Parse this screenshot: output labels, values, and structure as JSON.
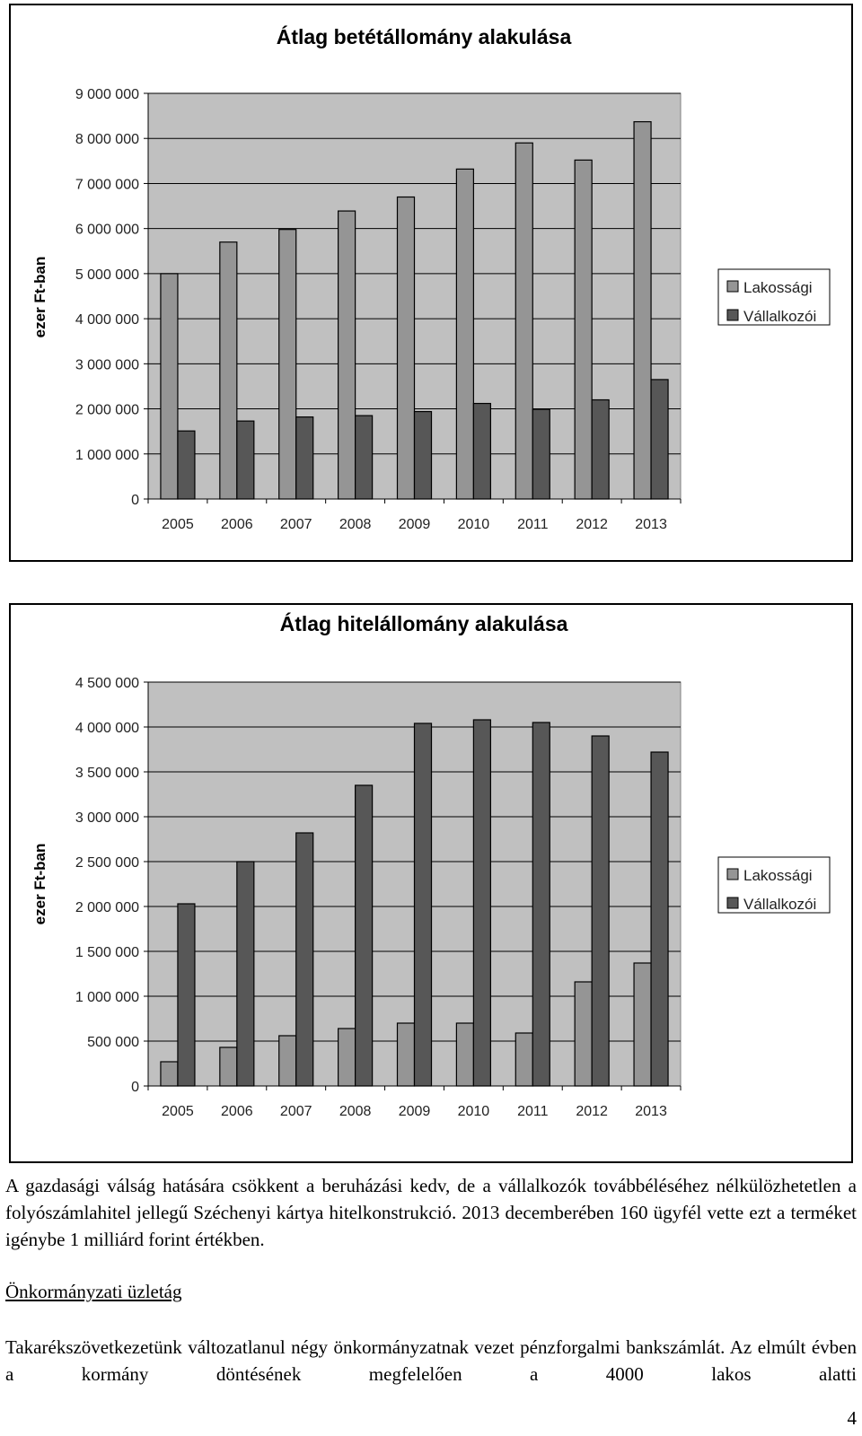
{
  "chart_data": [
    {
      "type": "bar",
      "title": "Átlag betétállomány alakulása",
      "ylabel": "ezer Ft-ban",
      "xlabel": "",
      "categories": [
        "2005",
        "2006",
        "2007",
        "2008",
        "2009",
        "2010",
        "2011",
        "2012",
        "2013"
      ],
      "series": [
        {
          "name": "Lakossági",
          "color": "#959595",
          "values": [
            5000000,
            5700000,
            5980000,
            6390000,
            6700000,
            7320000,
            7900000,
            7520000,
            8370000
          ]
        },
        {
          "name": "Vállalkozói",
          "color": "#575757",
          "values": [
            1510000,
            1730000,
            1820000,
            1850000,
            1940000,
            2120000,
            1990000,
            2200000,
            2650000
          ]
        }
      ],
      "ylim": [
        0,
        9000000
      ],
      "yticks": [
        0,
        1000000,
        2000000,
        3000000,
        4000000,
        5000000,
        6000000,
        7000000,
        8000000,
        9000000
      ],
      "ytick_labels": [
        "0",
        "1 000 000",
        "2 000 000",
        "3 000 000",
        "4 000 000",
        "5 000 000",
        "6 000 000",
        "7 000 000",
        "8 000 000",
        "9 000 000"
      ],
      "grid": true,
      "legend": "right"
    },
    {
      "type": "bar",
      "title": "Átlag hitelállomány alakulása",
      "ylabel": "ezer Ft-ban",
      "xlabel": "",
      "categories": [
        "2005",
        "2006",
        "2007",
        "2008",
        "2009",
        "2010",
        "2011",
        "2012",
        "2013"
      ],
      "series": [
        {
          "name": "Lakossági",
          "color": "#959595",
          "values": [
            270000,
            430000,
            560000,
            640000,
            700000,
            700000,
            590000,
            1160000,
            1370000
          ]
        },
        {
          "name": "Vállalkozói",
          "color": "#575757",
          "values": [
            2030000,
            2500000,
            2820000,
            3350000,
            4040000,
            4080000,
            4050000,
            3900000,
            3720000
          ]
        }
      ],
      "ylim": [
        0,
        4500000
      ],
      "yticks": [
        0,
        500000,
        1000000,
        1500000,
        2000000,
        2500000,
        3000000,
        3500000,
        4000000,
        4500000
      ],
      "ytick_labels": [
        "0",
        "500 000",
        "1 000 000",
        "1 500 000",
        "2 000 000",
        "2 500 000",
        "3 000 000",
        "3 500 000",
        "4 000 000",
        "4 500 000"
      ],
      "grid": true,
      "legend": "right"
    }
  ],
  "text": {
    "para1": "A gazdasági válság hatására csökkent a beruházási kedv, de a vállalkozók továbbéléséhez nélkülözhetetlen a folyószámlahitel jellegű Széchenyi kártya hitelkonstrukció. 2013 decemberében 160 ügyfél vette ezt a terméket igénybe 1 milliárd forint értékben.",
    "section_heading": "Önkormányzati üzletág",
    "para2": "Takarékszövetkezetünk változatlanul négy önkormányzatnak vezet pénzforgalmi bankszámlát. Az elmúlt évben a kormány döntésének megfelelően a 4000 lakos alatti",
    "page_number": "4"
  }
}
